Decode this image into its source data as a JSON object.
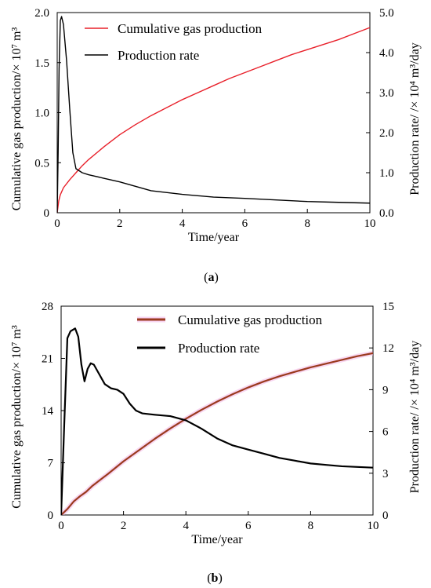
{
  "chart_data": [
    {
      "panel": "(a)",
      "panel_letter": "a",
      "type": "line",
      "xlabel": "Time/year",
      "ylabel_left": "Cumulative gas production/× 10⁷ m³",
      "ylabel_right": "Production rate/ /× 10⁴ m³/day",
      "xlim": [
        0,
        10
      ],
      "ylim_left": [
        0,
        2.0
      ],
      "ylim_right": [
        0,
        5.0
      ],
      "x_ticks": [
        "0",
        "2",
        "4",
        "6",
        "8",
        "10"
      ],
      "y_left_ticks": [
        "0",
        "0.5",
        "1.0",
        "1.5",
        "2.0"
      ],
      "y_right_ticks": [
        "0.0",
        "1.0",
        "2.0",
        "3.0",
        "4.0",
        "5.0"
      ],
      "legend_position": "top-left",
      "series": [
        {
          "name": "Cumulative gas production",
          "axis": "left",
          "color": "#e8202a",
          "x": [
            0,
            0.05,
            0.1,
            0.2,
            0.4,
            0.6,
            0.8,
            1.0,
            1.5,
            2.0,
            2.5,
            3.0,
            3.5,
            4.0,
            4.5,
            5.0,
            5.5,
            6.0,
            6.5,
            7.0,
            7.5,
            8.0,
            8.5,
            9.0,
            9.5,
            10.0
          ],
          "y": [
            0,
            0.12,
            0.18,
            0.25,
            0.33,
            0.4,
            0.47,
            0.53,
            0.66,
            0.78,
            0.88,
            0.97,
            1.05,
            1.13,
            1.2,
            1.27,
            1.34,
            1.4,
            1.46,
            1.52,
            1.58,
            1.63,
            1.68,
            1.73,
            1.79,
            1.85
          ]
        },
        {
          "name": "Production rate",
          "axis": "right",
          "color": "#000000",
          "x": [
            0,
            0.03,
            0.06,
            0.1,
            0.14,
            0.2,
            0.3,
            0.4,
            0.5,
            0.6,
            0.8,
            1.0,
            1.5,
            2.0,
            2.5,
            3.0,
            4.0,
            5.0,
            6.0,
            7.0,
            8.0,
            9.0,
            10.0
          ],
          "y": [
            0,
            1.5,
            3.6,
            4.8,
            4.9,
            4.7,
            3.8,
            2.6,
            1.5,
            1.1,
            1.0,
            0.95,
            0.86,
            0.77,
            0.66,
            0.55,
            0.46,
            0.39,
            0.36,
            0.32,
            0.28,
            0.26,
            0.24
          ]
        }
      ]
    },
    {
      "panel": "(b)",
      "panel_letter": "b",
      "type": "line",
      "xlabel": "Time/year",
      "ylabel_left": "Cumulative gas production/× 10⁷ m³",
      "ylabel_right": "Production rate/ /× 10⁴ m³/day",
      "xlim": [
        0,
        10
      ],
      "ylim_left": [
        0,
        28
      ],
      "ylim_right": [
        0,
        15
      ],
      "x_ticks": [
        "0",
        "2",
        "4",
        "6",
        "8",
        "10"
      ],
      "y_left_ticks": [
        "0",
        "7",
        "14",
        "21",
        "28"
      ],
      "y_right_ticks": [
        "0",
        "3",
        "6",
        "9",
        "12",
        "15"
      ],
      "legend_position": "top-right",
      "series": [
        {
          "name": "Cumulative gas production",
          "axis": "left",
          "color": "#9b3a1f",
          "x": [
            0,
            0.2,
            0.4,
            0.6,
            0.8,
            1.0,
            1.5,
            2.0,
            2.5,
            3.0,
            3.5,
            4.0,
            4.5,
            5.0,
            5.5,
            6.0,
            6.5,
            7.0,
            7.5,
            8.0,
            8.5,
            9.0,
            9.5,
            10.0
          ],
          "y": [
            0,
            0.8,
            1.8,
            2.5,
            3.1,
            3.9,
            5.5,
            7.2,
            8.7,
            10.2,
            11.6,
            12.9,
            14.1,
            15.2,
            16.2,
            17.1,
            17.9,
            18.6,
            19.2,
            19.8,
            20.3,
            20.8,
            21.3,
            21.7
          ]
        },
        {
          "name": "Production rate",
          "axis": "right",
          "color": "#000000",
          "x": [
            0,
            0.1,
            0.2,
            0.3,
            0.45,
            0.55,
            0.65,
            0.75,
            0.85,
            0.95,
            1.05,
            1.2,
            1.4,
            1.6,
            1.8,
            2.0,
            2.2,
            2.4,
            2.6,
            3.0,
            3.5,
            4.0,
            4.5,
            5.0,
            5.5,
            6.0,
            6.5,
            7.0,
            7.5,
            8.0,
            8.5,
            9.0,
            9.5,
            10.0
          ],
          "y": [
            0,
            6.5,
            12.7,
            13.2,
            13.4,
            12.8,
            10.8,
            9.6,
            10.5,
            10.9,
            10.8,
            10.2,
            9.4,
            9.1,
            9.0,
            8.7,
            8.0,
            7.5,
            7.3,
            7.2,
            7.1,
            6.8,
            6.2,
            5.5,
            5.0,
            4.7,
            4.4,
            4.1,
            3.9,
            3.7,
            3.6,
            3.5,
            3.45,
            3.4
          ]
        }
      ]
    }
  ]
}
